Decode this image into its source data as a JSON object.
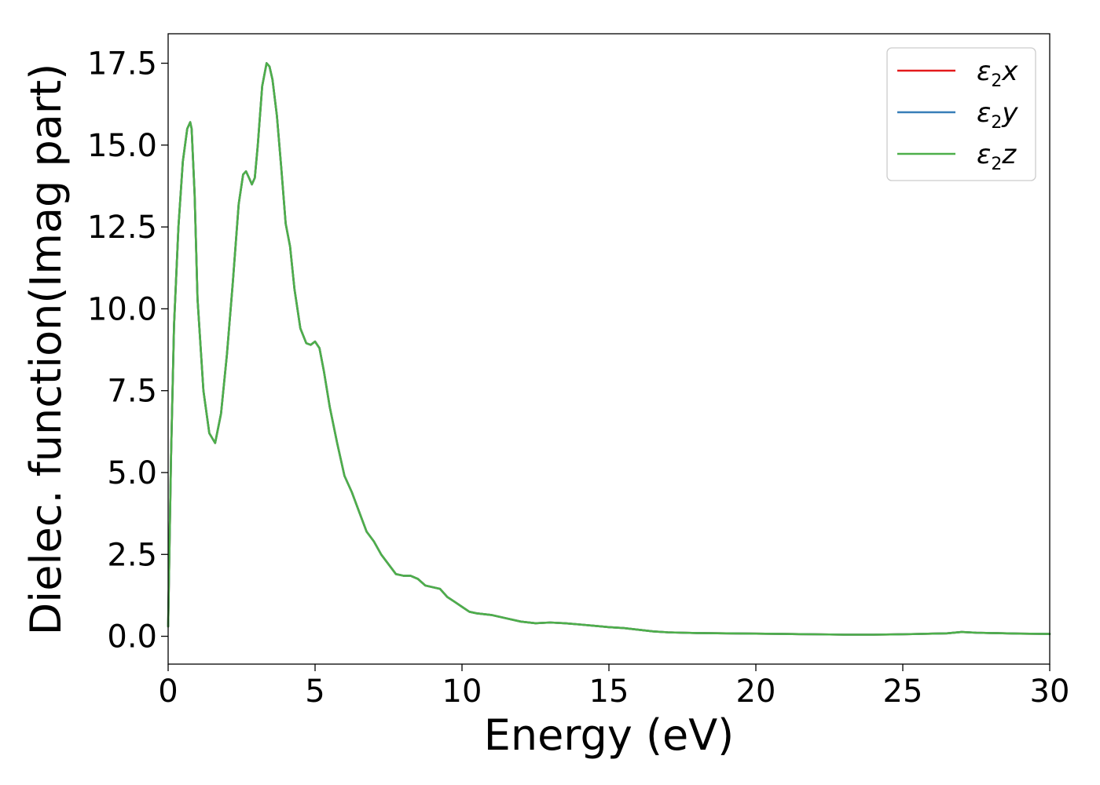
{
  "chart_data": {
    "type": "line",
    "xlabel": "Energy (eV)",
    "ylabel": "Dielec. function(Imag part)",
    "xlim": [
      0,
      30
    ],
    "ylim": [
      -0.85,
      18.4
    ],
    "xticks": [
      "0",
      "5",
      "10",
      "15",
      "20",
      "25",
      "30"
    ],
    "yticks": [
      "0.0",
      "2.5",
      "5.0",
      "7.5",
      "10.0",
      "12.5",
      "15.0",
      "17.5"
    ],
    "grid": false,
    "legend_position": "top-right",
    "series": [
      {
        "name": "ε₂x",
        "name_base": "ε",
        "name_sub": "2",
        "name_suffix": "x",
        "color": "#e41a1c"
      },
      {
        "name": "ε₂y",
        "name_base": "ε",
        "name_sub": "2",
        "name_suffix": "y",
        "color": "#377eb8"
      },
      {
        "name": "ε₂z",
        "name_base": "ε",
        "name_sub": "2",
        "name_suffix": "z",
        "color": "#4daf4a"
      }
    ],
    "x": [
      0,
      0.1,
      0.2,
      0.35,
      0.5,
      0.65,
      0.75,
      0.8,
      0.9,
      1.0,
      1.2,
      1.4,
      1.6,
      1.8,
      2.0,
      2.2,
      2.4,
      2.55,
      2.65,
      2.75,
      2.85,
      2.95,
      3.05,
      3.2,
      3.35,
      3.45,
      3.55,
      3.7,
      3.85,
      4.0,
      4.15,
      4.3,
      4.5,
      4.7,
      4.85,
      5.0,
      5.15,
      5.3,
      5.5,
      5.75,
      6.0,
      6.25,
      6.5,
      6.75,
      7.0,
      7.25,
      7.5,
      7.75,
      8.0,
      8.25,
      8.5,
      8.75,
      9.0,
      9.25,
      9.5,
      9.75,
      10.0,
      10.25,
      10.5,
      11.0,
      11.5,
      12.0,
      12.5,
      13.0,
      13.5,
      14.0,
      14.5,
      15.0,
      15.5,
      16.0,
      16.5,
      17.0,
      17.5,
      18.0,
      19.0,
      20.0,
      21.0,
      22.0,
      23.0,
      24.0,
      25.0,
      26.0,
      26.5,
      27.0,
      27.5,
      28.0,
      29.0,
      30.0
    ],
    "values": [
      0.3,
      5.5,
      9.5,
      12.5,
      14.5,
      15.5,
      15.7,
      15.5,
      13.5,
      10.3,
      7.5,
      6.2,
      5.9,
      6.8,
      8.6,
      10.8,
      13.2,
      14.1,
      14.2,
      14.0,
      13.8,
      14.0,
      15.0,
      16.8,
      17.5,
      17.4,
      17.0,
      15.9,
      14.3,
      12.6,
      11.9,
      10.6,
      9.4,
      8.95,
      8.9,
      9.0,
      8.8,
      8.1,
      7.0,
      5.9,
      4.9,
      4.4,
      3.8,
      3.2,
      2.9,
      2.5,
      2.2,
      1.9,
      1.85,
      1.85,
      1.75,
      1.55,
      1.5,
      1.45,
      1.2,
      1.05,
      0.9,
      0.75,
      0.7,
      0.65,
      0.55,
      0.45,
      0.4,
      0.42,
      0.4,
      0.36,
      0.32,
      0.28,
      0.25,
      0.2,
      0.15,
      0.12,
      0.11,
      0.1,
      0.09,
      0.08,
      0.07,
      0.06,
      0.05,
      0.05,
      0.06,
      0.08,
      0.09,
      0.13,
      0.11,
      0.1,
      0.08,
      0.07
    ]
  }
}
